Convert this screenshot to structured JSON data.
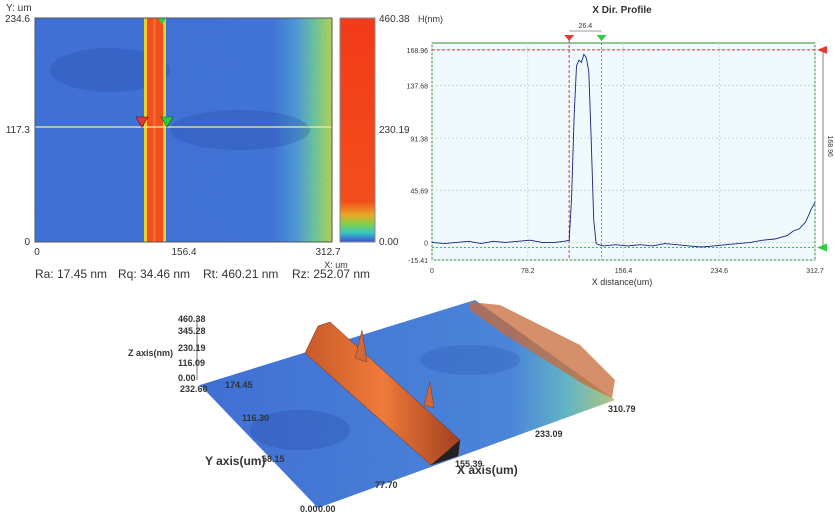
{
  "map2d": {
    "y_unit": "Y: um",
    "x_unit": "X: um",
    "yticks": [
      "234.6",
      "117.3",
      "0"
    ],
    "xticks": [
      "0",
      "156.4",
      "312.7"
    ],
    "colorbar": [
      "460.38",
      "230.19",
      "0.00"
    ]
  },
  "roughness": {
    "ra": "Ra: 17.45 nm",
    "rq": "Rq: 34.46 nm",
    "rt": "Rt: 460.21 nm",
    "rz": "Rz: 252.07 nm"
  },
  "profile": {
    "type": "line",
    "title": "X Dir. Profile",
    "y_label": "H(nm)",
    "x_label": "X distance(um)",
    "xlim": [
      0,
      312.7
    ],
    "ylim": [
      -15.41,
      175
    ],
    "xticks": [
      0,
      78.2,
      156.4,
      234.6,
      312.7
    ],
    "yticks": [
      168.96,
      137.68,
      91.38,
      45.69,
      0,
      -15.41
    ],
    "x": [
      0,
      10,
      20,
      30,
      40,
      50,
      60,
      70,
      80,
      90,
      100,
      108,
      112,
      114,
      116,
      118,
      120,
      122,
      124,
      126,
      128,
      130,
      132,
      134,
      136,
      140,
      150,
      160,
      170,
      180,
      190,
      200,
      210,
      220,
      230,
      240,
      250,
      260,
      270,
      280,
      290,
      295,
      300,
      305,
      308,
      310,
      312.7
    ],
    "values": [
      0,
      -1,
      0,
      1,
      -1,
      1,
      0,
      1,
      2,
      0,
      0,
      1,
      2,
      40,
      110,
      155,
      160,
      158,
      165,
      162,
      150,
      90,
      20,
      -1,
      -2,
      -3,
      -2,
      -3,
      -2,
      -3,
      -1,
      -2,
      -3,
      -4,
      -3,
      -2,
      -1,
      0,
      2,
      3,
      6,
      10,
      12,
      18,
      25,
      30,
      35
    ],
    "color": "#1a237e",
    "cursors_x": [
      112,
      138.4
    ],
    "cursor_width": "26.4",
    "height_marker": "168.96"
  },
  "surface3d": {
    "z_label": "Z axis(nm)",
    "zticks": [
      "460.38",
      "345.28",
      "230.19",
      "116.09",
      "0.00"
    ],
    "y_label": "Y axis(um)",
    "yticks": [
      "0.00",
      "58.15",
      "116.30",
      "174.45",
      "232.60"
    ],
    "x_label": "X axis(um)",
    "xticks": [
      "0.00",
      "77.70",
      "155.39",
      "233.09",
      "310.79"
    ]
  }
}
